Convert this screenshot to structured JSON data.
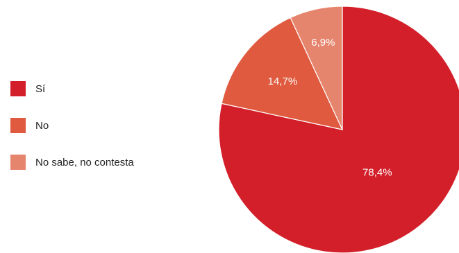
{
  "chart_data": {
    "type": "pie",
    "categories": [
      "Sí",
      "No",
      "No sabe, no contesta"
    ],
    "values": [
      78.4,
      14.7,
      6.9
    ],
    "value_labels": [
      "78,4%",
      "14,7%",
      "6,9%"
    ],
    "colors": [
      "#d31f2a",
      "#df5a3e",
      "#e6856e"
    ],
    "legend": "left",
    "title": "",
    "start_direction": "top, clockwise"
  }
}
